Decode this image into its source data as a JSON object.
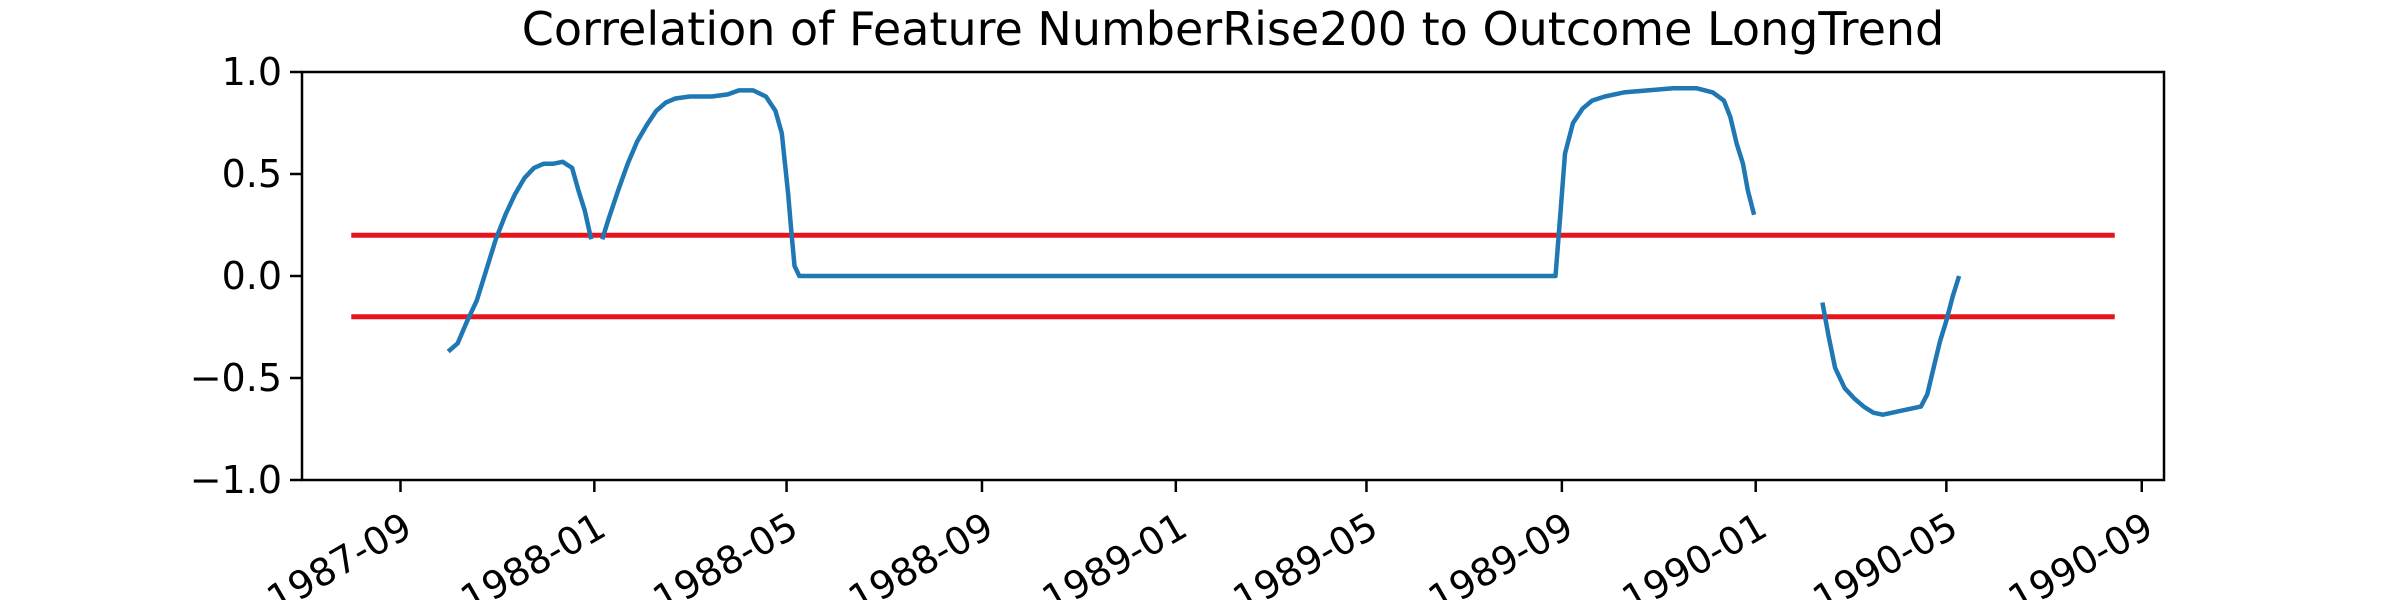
{
  "chart_data": {
    "type": "line",
    "title": "Correlation of Feature NumberRise200 to Outcome LongTrend",
    "xlabel": "",
    "ylabel": "",
    "ylim": [
      -1.0,
      1.0
    ],
    "xlim": [
      "1987-07-01",
      "1990-09-15"
    ],
    "grid": false,
    "y_ticks": [
      {
        "value": -1.0,
        "label": "−1.0"
      },
      {
        "value": -0.5,
        "label": "−0.5"
      },
      {
        "value": 0.0,
        "label": "0.0"
      },
      {
        "value": 0.5,
        "label": "0.5"
      },
      {
        "value": 1.0,
        "label": "1.0"
      }
    ],
    "x_ticks": [
      {
        "value": "1987-09-01",
        "label": "1987-09"
      },
      {
        "value": "1988-01-01",
        "label": "1988-01"
      },
      {
        "value": "1988-05-01",
        "label": "1988-05"
      },
      {
        "value": "1988-09-01",
        "label": "1988-09"
      },
      {
        "value": "1989-01-01",
        "label": "1989-01"
      },
      {
        "value": "1989-05-01",
        "label": "1989-05"
      },
      {
        "value": "1989-09-01",
        "label": "1989-09"
      },
      {
        "value": "1990-01-01",
        "label": "1990-01"
      },
      {
        "value": "1990-05-01",
        "label": "1990-05"
      },
      {
        "value": "1990-09-01",
        "label": "1990-09"
      }
    ],
    "thresholds": [
      {
        "value": 0.2,
        "from": "1987-08-01",
        "to": "1990-08-15",
        "color": "#e8141b"
      },
      {
        "value": -0.2,
        "from": "1987-08-01",
        "to": "1990-08-15",
        "color": "#e8141b"
      }
    ],
    "series": [
      {
        "color": "#1f77b4",
        "segments": [
          [
            [
              "1987-10-01",
              -0.37
            ],
            [
              "1987-10-07",
              -0.33
            ],
            [
              "1987-10-13",
              -0.22
            ],
            [
              "1987-10-19",
              -0.12
            ],
            [
              "1987-10-25",
              0.03
            ],
            [
              "1987-10-31",
              0.18
            ],
            [
              "1987-11-06",
              0.3
            ],
            [
              "1987-11-12",
              0.4
            ],
            [
              "1987-11-18",
              0.48
            ],
            [
              "1987-11-24",
              0.53
            ],
            [
              "1987-11-30",
              0.55
            ],
            [
              "1987-12-06",
              0.55
            ],
            [
              "1987-12-12",
              0.56
            ],
            [
              "1987-12-18",
              0.53
            ],
            [
              "1987-12-22",
              0.42
            ],
            [
              "1987-12-26",
              0.32
            ],
            [
              "1987-12-30",
              0.18
            ]
          ],
          [
            [
              "1988-01-06",
              0.18
            ],
            [
              "1988-01-10",
              0.28
            ],
            [
              "1988-01-16",
              0.42
            ],
            [
              "1988-01-22",
              0.55
            ],
            [
              "1988-01-28",
              0.66
            ],
            [
              "1988-02-03",
              0.74
            ],
            [
              "1988-02-09",
              0.81
            ],
            [
              "1988-02-15",
              0.85
            ],
            [
              "1988-02-21",
              0.87
            ],
            [
              "1988-03-01",
              0.88
            ],
            [
              "1988-03-15",
              0.88
            ],
            [
              "1988-03-25",
              0.89
            ],
            [
              "1988-04-01",
              0.91
            ],
            [
              "1988-04-10",
              0.91
            ],
            [
              "1988-04-18",
              0.88
            ],
            [
              "1988-04-24",
              0.81
            ],
            [
              "1988-04-28",
              0.7
            ],
            [
              "1988-04-30",
              0.55
            ],
            [
              "1988-05-02",
              0.4
            ],
            [
              "1988-05-04",
              0.22
            ],
            [
              "1988-05-06",
              0.05
            ],
            [
              "1988-05-09",
              0.0
            ],
            [
              "1989-08-28",
              0.0
            ],
            [
              "1989-08-31",
              0.3
            ],
            [
              "1989-09-03",
              0.6
            ],
            [
              "1989-09-08",
              0.75
            ],
            [
              "1989-09-14",
              0.82
            ],
            [
              "1989-09-20",
              0.86
            ],
            [
              "1989-09-28",
              0.88
            ],
            [
              "1989-10-10",
              0.9
            ],
            [
              "1989-10-25",
              0.91
            ],
            [
              "1989-11-10",
              0.92
            ],
            [
              "1989-11-25",
              0.92
            ],
            [
              "1989-12-05",
              0.9
            ],
            [
              "1989-12-12",
              0.86
            ],
            [
              "1989-12-16",
              0.78
            ],
            [
              "1989-12-20",
              0.65
            ],
            [
              "1989-12-24",
              0.55
            ],
            [
              "1989-12-27",
              0.42
            ],
            [
              "1989-12-31",
              0.3
            ]
          ],
          [
            [
              "1990-02-12",
              -0.13
            ],
            [
              "1990-02-16",
              -0.3
            ],
            [
              "1990-02-20",
              -0.45
            ],
            [
              "1990-02-26",
              -0.55
            ],
            [
              "1990-03-04",
              -0.6
            ],
            [
              "1990-03-10",
              -0.64
            ],
            [
              "1990-03-16",
              -0.67
            ],
            [
              "1990-03-22",
              -0.68
            ],
            [
              "1990-03-28",
              -0.67
            ],
            [
              "1990-04-03",
              -0.66
            ],
            [
              "1990-04-09",
              -0.65
            ],
            [
              "1990-04-15",
              -0.64
            ],
            [
              "1990-04-19",
              -0.58
            ],
            [
              "1990-04-23",
              -0.45
            ],
            [
              "1990-04-27",
              -0.32
            ],
            [
              "1990-05-01",
              -0.22
            ],
            [
              "1990-05-05",
              -0.1
            ],
            [
              "1990-05-09",
              0.0
            ]
          ]
        ]
      }
    ]
  }
}
